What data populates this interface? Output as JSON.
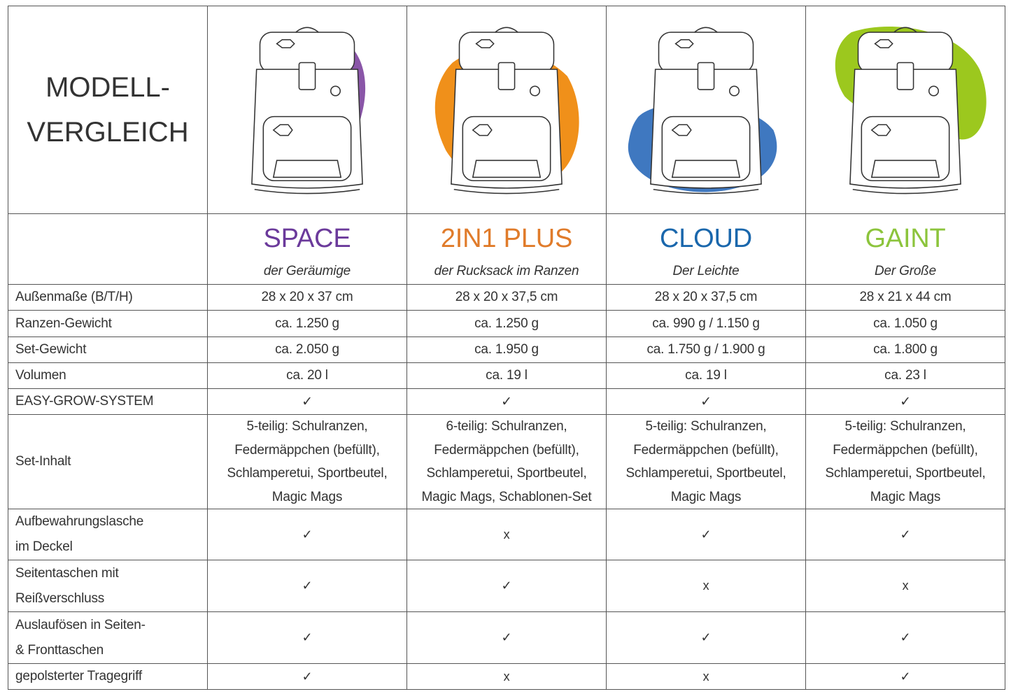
{
  "title_line1": "MODELL-",
  "title_line2": "VERGLEICH",
  "models": [
    {
      "name": "SPACE",
      "subtitle": "der Geräumige",
      "color": "#6b3a9b",
      "blob": "#8a56a8"
    },
    {
      "name": "2IN1 PLUS",
      "subtitle": "der Rucksack im Ranzen",
      "color": "#e07b2a",
      "blob": "#f0901a"
    },
    {
      "name": "CLOUD",
      "subtitle": "Der Leichte",
      "color": "#1a67ac",
      "blob": "#3f78c0"
    },
    {
      "name": "GAINT",
      "subtitle": "Der Große",
      "color": "#8cc43c",
      "blob": "#9cc81e"
    }
  ],
  "rows": [
    {
      "label": "Außenmaße (B/T/H)",
      "values": [
        "28 x 20 x 37 cm",
        "28 x 20 x 37,5 cm",
        "28 x 20 x 37,5 cm",
        "28 x 21 x 44 cm"
      ]
    },
    {
      "label": "Ranzen-Gewicht",
      "values": [
        "ca. 1.250 g",
        "ca. 1.250 g",
        "ca. 990 g / 1.150 g",
        "ca. 1.050 g"
      ]
    },
    {
      "label": "Set-Gewicht",
      "values": [
        "ca. 2.050 g",
        "ca. 1.950 g",
        "ca. 1.750 g / 1.900 g",
        "ca. 1.800 g"
      ]
    },
    {
      "label": "Volumen",
      "values": [
        "ca. 20 l",
        "ca. 19 l",
        "ca. 19 l",
        "ca. 23 l"
      ]
    },
    {
      "label": "EASY-GROW-SYSTEM",
      "values": [
        "✓",
        "✓",
        "✓",
        "✓"
      ]
    }
  ],
  "set_row": {
    "label": "Set-Inhalt",
    "values": [
      [
        "5-teilig: Schulranzen,",
        "Federmäppchen (befüllt),",
        "Schlamperetui, Sportbeutel,",
        "Magic Mags"
      ],
      [
        "6-teilig: Schulranzen,",
        "Federmäppchen (befüllt),",
        "Schlamperetui, Sportbeutel,",
        "Magic Mags, Schablonen-Set"
      ],
      [
        "5-teilig: Schulranzen,",
        "Federmäppchen (befüllt),",
        "Schlamperetui, Sportbeutel,",
        "Magic Mags"
      ],
      [
        "5-teilig: Schulranzen,",
        "Federmäppchen (befüllt),",
        "Schlamperetui, Sportbeutel,",
        "Magic Mags"
      ]
    ]
  },
  "feature_rows": [
    {
      "label": [
        "Aufbewahrungslasche",
        "im Deckel"
      ],
      "values": [
        "✓",
        "x",
        "✓",
        "✓"
      ]
    },
    {
      "label": [
        "Seitentaschen mit",
        "Reißverschluss"
      ],
      "values": [
        "✓",
        "✓",
        "x",
        "x"
      ]
    },
    {
      "label": [
        "Auslaufösen in Seiten-",
        "& Fronttaschen"
      ],
      "values": [
        "✓",
        "✓",
        "✓",
        "✓"
      ]
    },
    {
      "label": [
        "gepolsterter Tragegriff"
      ],
      "values": [
        "✓",
        "x",
        "x",
        "✓"
      ]
    }
  ]
}
